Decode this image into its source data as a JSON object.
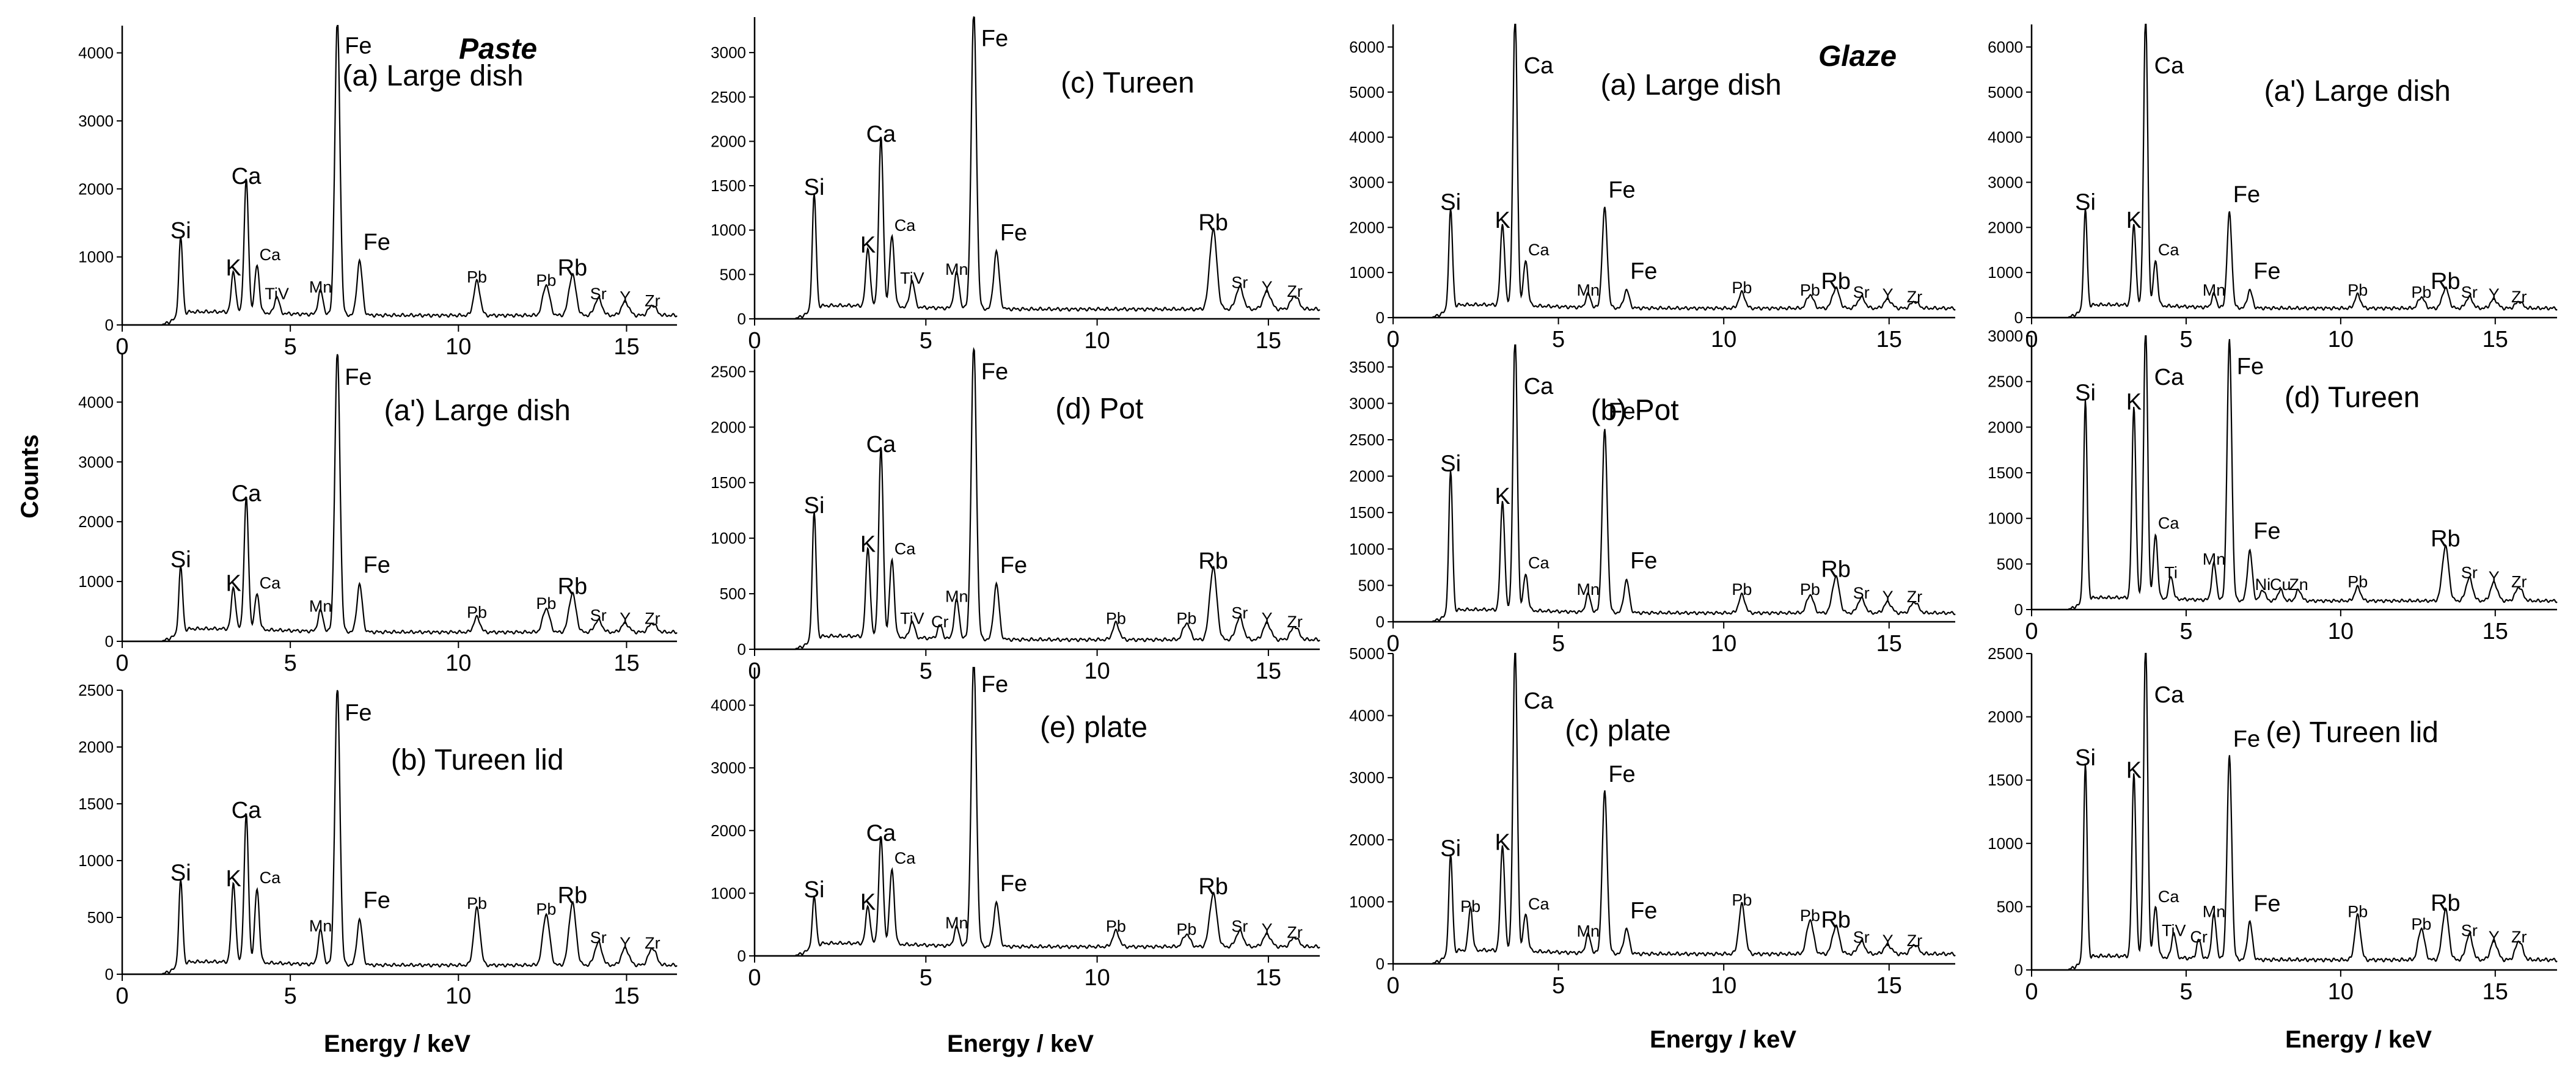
{
  "figure": {
    "ylabel": "Counts",
    "xlabel": "Energy / keV",
    "groups": [
      "Paste",
      "Glaze"
    ]
  },
  "chart_data": [
    {
      "type": "line",
      "title": "(a) Large dish",
      "group": "Paste",
      "xlim": [
        0,
        16.5
      ],
      "ylim": [
        0,
        4400
      ],
      "xticks": [
        "0",
        "5",
        "10",
        "15"
      ],
      "yticks": [
        "0",
        "1000",
        "2000",
        "3000",
        "4000"
      ],
      "peaks": [
        {
          "label": "Si",
          "x": 1.74,
          "y": 1150
        },
        {
          "label": "K",
          "x": 3.31,
          "y": 600
        },
        {
          "label": "Ca",
          "x": 3.69,
          "y": 1950
        },
        {
          "label": "Ca",
          "x": 4.01,
          "y": 700
        },
        {
          "label": "TiV",
          "x": 4.6,
          "y": 250
        },
        {
          "label": "Mn",
          "x": 5.9,
          "y": 350
        },
        {
          "label": "Fe",
          "x": 6.4,
          "y": 4350
        },
        {
          "label": "Fe",
          "x": 7.06,
          "y": 800
        },
        {
          "label": "Pb",
          "x": 10.55,
          "y": 500
        },
        {
          "label": "Pb",
          "x": 12.61,
          "y": 450
        },
        {
          "label": "Rb",
          "x": 13.39,
          "y": 600
        },
        {
          "label": "Sr",
          "x": 14.16,
          "y": 250
        },
        {
          "label": "Y",
          "x": 14.96,
          "y": 200
        },
        {
          "label": "Zr",
          "x": 15.77,
          "y": 150
        }
      ]
    },
    {
      "type": "line",
      "title": "(c) Tureen",
      "group": "Paste",
      "xlim": [
        0,
        16.5
      ],
      "ylim": [
        0,
        3400
      ],
      "xticks": [
        "0",
        "5",
        "10",
        "15"
      ],
      "yticks": [
        "0",
        "500",
        "1000",
        "1500",
        "2000",
        "2500",
        "3000"
      ],
      "peaks": [
        {
          "label": "Si",
          "x": 1.74,
          "y": 1300
        },
        {
          "label": "K",
          "x": 3.31,
          "y": 650
        },
        {
          "label": "Ca",
          "x": 3.69,
          "y": 1900
        },
        {
          "label": "Ca",
          "x": 4.01,
          "y": 800
        },
        {
          "label": "TiV",
          "x": 4.6,
          "y": 300
        },
        {
          "label": "Mn",
          "x": 5.9,
          "y": 400
        },
        {
          "label": "Fe",
          "x": 6.4,
          "y": 3350
        },
        {
          "label": "Fe",
          "x": 7.06,
          "y": 650
        },
        {
          "label": "Rb",
          "x": 13.39,
          "y": 900
        },
        {
          "label": "Sr",
          "x": 14.16,
          "y": 250
        },
        {
          "label": "Y",
          "x": 14.96,
          "y": 200
        },
        {
          "label": "Zr",
          "x": 15.77,
          "y": 150
        }
      ]
    },
    {
      "type": "line",
      "title": "(a) Large dish",
      "group": "Glaze",
      "xlim": [
        0,
        17
      ],
      "ylim": [
        0,
        6500
      ],
      "xticks": [
        "0",
        "5",
        "10",
        "15"
      ],
      "yticks": [
        "0",
        "1000",
        "2000",
        "3000",
        "4000",
        "5000",
        "6000"
      ],
      "peaks": [
        {
          "label": "Si",
          "x": 1.74,
          "y": 2200
        },
        {
          "label": "K",
          "x": 3.31,
          "y": 1800
        },
        {
          "label": "Ca",
          "x": 3.69,
          "y": 6500
        },
        {
          "label": "Ca",
          "x": 4.01,
          "y": 1000
        },
        {
          "label": "Mn",
          "x": 5.9,
          "y": 300
        },
        {
          "label": "Fe",
          "x": 6.4,
          "y": 2200
        },
        {
          "label": "Fe",
          "x": 7.06,
          "y": 400
        },
        {
          "label": "Pb",
          "x": 10.55,
          "y": 350
        },
        {
          "label": "Pb",
          "x": 12.61,
          "y": 300
        },
        {
          "label": "Rb",
          "x": 13.39,
          "y": 450
        },
        {
          "label": "Sr",
          "x": 14.16,
          "y": 250
        },
        {
          "label": "Y",
          "x": 14.96,
          "y": 200
        },
        {
          "label": "Zr",
          "x": 15.77,
          "y": 150
        }
      ]
    },
    {
      "type": "line",
      "title": "(a') Large dish",
      "group": "Glaze",
      "xlim": [
        0,
        17
      ],
      "ylim": [
        0,
        6500
      ],
      "xticks": [
        "0",
        "5",
        "10",
        "15"
      ],
      "yticks": [
        "0",
        "1000",
        "2000",
        "3000",
        "4000",
        "5000",
        "6000"
      ],
      "peaks": [
        {
          "label": "Si",
          "x": 1.74,
          "y": 2200
        },
        {
          "label": "K",
          "x": 3.31,
          "y": 1800
        },
        {
          "label": "Ca",
          "x": 3.69,
          "y": 6500
        },
        {
          "label": "Ca",
          "x": 4.01,
          "y": 1000
        },
        {
          "label": "Mn",
          "x": 5.9,
          "y": 300
        },
        {
          "label": "Fe",
          "x": 6.4,
          "y": 2100
        },
        {
          "label": "Fe",
          "x": 7.06,
          "y": 400
        },
        {
          "label": "Pb",
          "x": 10.55,
          "y": 300
        },
        {
          "label": "Pb",
          "x": 12.61,
          "y": 250
        },
        {
          "label": "Rb",
          "x": 13.39,
          "y": 450
        },
        {
          "label": "Sr",
          "x": 14.16,
          "y": 250
        },
        {
          "label": "Y",
          "x": 14.96,
          "y": 200
        },
        {
          "label": "Zr",
          "x": 15.77,
          "y": 150
        }
      ]
    },
    {
      "type": "line",
      "title": "(a') Large dish",
      "group": "Paste",
      "xlim": [
        0,
        16.5
      ],
      "ylim": [
        0,
        4800
      ],
      "xticks": [
        "0",
        "5",
        "10",
        "15"
      ],
      "yticks": [
        "0",
        "1000",
        "2000",
        "3000",
        "4000"
      ],
      "peaks": [
        {
          "label": "Si",
          "x": 1.74,
          "y": 1100
        },
        {
          "label": "K",
          "x": 3.31,
          "y": 700
        },
        {
          "label": "Ca",
          "x": 3.69,
          "y": 2200
        },
        {
          "label": "Ca",
          "x": 4.01,
          "y": 600
        },
        {
          "label": "Mn",
          "x": 5.9,
          "y": 350
        },
        {
          "label": "Fe",
          "x": 6.4,
          "y": 4700
        },
        {
          "label": "Fe",
          "x": 7.06,
          "y": 800
        },
        {
          "label": "Pb",
          "x": 10.55,
          "y": 250
        },
        {
          "label": "Pb",
          "x": 12.61,
          "y": 400
        },
        {
          "label": "Rb",
          "x": 13.39,
          "y": 650
        },
        {
          "label": "Sr",
          "x": 14.16,
          "y": 200
        },
        {
          "label": "Y",
          "x": 14.96,
          "y": 150
        },
        {
          "label": "Zr",
          "x": 15.77,
          "y": 150
        }
      ]
    },
    {
      "type": "line",
      "title": "(d) Pot",
      "group": "Paste",
      "xlim": [
        0,
        16.5
      ],
      "ylim": [
        0,
        2700
      ],
      "xticks": [
        "0",
        "5",
        "10",
        "15"
      ],
      "yticks": [
        "0",
        "500",
        "1000",
        "1500",
        "2000",
        "2500"
      ],
      "peaks": [
        {
          "label": "Si",
          "x": 1.74,
          "y": 1150
        },
        {
          "label": "K",
          "x": 3.31,
          "y": 800
        },
        {
          "label": "Ca",
          "x": 3.69,
          "y": 1700
        },
        {
          "label": "Ca",
          "x": 4.01,
          "y": 700
        },
        {
          "label": "TiV",
          "x": 4.6,
          "y": 150
        },
        {
          "label": "Cr",
          "x": 5.41,
          "y": 120
        },
        {
          "label": "Mn",
          "x": 5.9,
          "y": 350
        },
        {
          "label": "Fe",
          "x": 6.4,
          "y": 2650
        },
        {
          "label": "Fe",
          "x": 7.06,
          "y": 500
        },
        {
          "label": "Pb",
          "x": 10.55,
          "y": 150
        },
        {
          "label": "Pb",
          "x": 12.61,
          "y": 150
        },
        {
          "label": "Rb",
          "x": 13.39,
          "y": 650
        },
        {
          "label": "Sr",
          "x": 14.16,
          "y": 200
        },
        {
          "label": "Y",
          "x": 14.96,
          "y": 150
        },
        {
          "label": "Zr",
          "x": 15.77,
          "y": 120
        }
      ]
    },
    {
      "type": "line",
      "title": "(b) Pot",
      "group": "Glaze",
      "xlim": [
        0,
        17
      ],
      "ylim": [
        0,
        3800
      ],
      "xticks": [
        "0",
        "5",
        "10",
        "15"
      ],
      "yticks": [
        "0",
        "500",
        "1000",
        "1500",
        "2000",
        "2500",
        "3000",
        "3500"
      ],
      "peaks": [
        {
          "label": "Si",
          "x": 1.74,
          "y": 1950
        },
        {
          "label": "K",
          "x": 3.31,
          "y": 1500
        },
        {
          "label": "Ca",
          "x": 3.69,
          "y": 3800
        },
        {
          "label": "Ca",
          "x": 4.01,
          "y": 500
        },
        {
          "label": "Mn",
          "x": 5.9,
          "y": 250
        },
        {
          "label": "Fe",
          "x": 6.4,
          "y": 2500
        },
        {
          "label": "Fe",
          "x": 7.06,
          "y": 450
        },
        {
          "label": "Pb",
          "x": 10.55,
          "y": 250
        },
        {
          "label": "Pb",
          "x": 12.61,
          "y": 250
        },
        {
          "label": "Rb",
          "x": 13.39,
          "y": 500
        },
        {
          "label": "Sr",
          "x": 14.16,
          "y": 200
        },
        {
          "label": "Y",
          "x": 14.96,
          "y": 150
        },
        {
          "label": "Zr",
          "x": 15.77,
          "y": 150
        }
      ]
    },
    {
      "type": "line",
      "title": "(d) Tureen",
      "group": "Glaze",
      "xlim": [
        0,
        17
      ],
      "ylim": [
        0,
        3000
      ],
      "xticks": [
        "0",
        "5",
        "10",
        "15"
      ],
      "yticks": [
        "0",
        "500",
        "1000",
        "1500",
        "2000",
        "2500",
        "3000"
      ],
      "peaks": [
        {
          "label": "Si",
          "x": 1.74,
          "y": 2200
        },
        {
          "label": "K",
          "x": 3.31,
          "y": 2100
        },
        {
          "label": "Ca",
          "x": 3.69,
          "y": 3000
        },
        {
          "label": "Ca",
          "x": 4.01,
          "y": 700
        },
        {
          "label": "Ti",
          "x": 4.51,
          "y": 250
        },
        {
          "label": "Mn",
          "x": 5.9,
          "y": 400
        },
        {
          "label": "Fe",
          "x": 6.4,
          "y": 2850
        },
        {
          "label": "Fe",
          "x": 7.06,
          "y": 550
        },
        {
          "label": "Ni",
          "x": 7.48,
          "y": 120
        },
        {
          "label": "Cu",
          "x": 8.05,
          "y": 120
        },
        {
          "label": "Zn",
          "x": 8.64,
          "y": 120
        },
        {
          "label": "Pb",
          "x": 10.55,
          "y": 150
        },
        {
          "label": "Rb",
          "x": 13.39,
          "y": 600
        },
        {
          "label": "Sr",
          "x": 14.16,
          "y": 250
        },
        {
          "label": "Y",
          "x": 14.96,
          "y": 200
        },
        {
          "label": "Zr",
          "x": 15.77,
          "y": 150
        }
      ]
    },
    {
      "type": "line",
      "title": "(b) Tureen lid",
      "group": "Paste",
      "xlim": [
        0,
        16.5
      ],
      "ylim": [
        0,
        2500
      ],
      "xticks": [
        "0",
        "5",
        "10",
        "15"
      ],
      "yticks": [
        "0",
        "500",
        "1000",
        "1500",
        "2000",
        "2500"
      ],
      "peaks": [
        {
          "label": "Si",
          "x": 1.74,
          "y": 750
        },
        {
          "label": "K",
          "x": 3.31,
          "y": 700
        },
        {
          "label": "Ca",
          "x": 3.69,
          "y": 1300
        },
        {
          "label": "Ca",
          "x": 4.01,
          "y": 650
        },
        {
          "label": "Mn",
          "x": 5.9,
          "y": 300
        },
        {
          "label": "Fe",
          "x": 6.4,
          "y": 2450
        },
        {
          "label": "Fe",
          "x": 7.06,
          "y": 400
        },
        {
          "label": "Pb",
          "x": 10.55,
          "y": 500
        },
        {
          "label": "Pb",
          "x": 12.61,
          "y": 450
        },
        {
          "label": "Rb",
          "x": 13.39,
          "y": 550
        },
        {
          "label": "Sr",
          "x": 14.16,
          "y": 200
        },
        {
          "label": "Y",
          "x": 14.96,
          "y": 150
        },
        {
          "label": "Zr",
          "x": 15.77,
          "y": 150
        }
      ]
    },
    {
      "type": "line",
      "title": "(e) plate",
      "group": "Paste",
      "xlim": [
        0,
        16.5
      ],
      "ylim": [
        0,
        4600
      ],
      "xticks": [
        "0",
        "5",
        "10",
        "15"
      ],
      "yticks": [
        "0",
        "1000",
        "2000",
        "3000",
        "4000"
      ],
      "peaks": [
        {
          "label": "Si",
          "x": 1.74,
          "y": 800
        },
        {
          "label": "K",
          "x": 3.31,
          "y": 600
        },
        {
          "label": "Ca",
          "x": 3.69,
          "y": 1700
        },
        {
          "label": "Ca",
          "x": 4.01,
          "y": 1200
        },
        {
          "label": "Mn",
          "x": 5.9,
          "y": 300
        },
        {
          "label": "Fe",
          "x": 6.4,
          "y": 4600
        },
        {
          "label": "Fe",
          "x": 7.06,
          "y": 700
        },
        {
          "label": "Pb",
          "x": 10.55,
          "y": 250
        },
        {
          "label": "Pb",
          "x": 12.61,
          "y": 200
        },
        {
          "label": "Rb",
          "x": 13.39,
          "y": 850
        },
        {
          "label": "Sr",
          "x": 14.16,
          "y": 250
        },
        {
          "label": "Y",
          "x": 14.96,
          "y": 200
        },
        {
          "label": "Zr",
          "x": 15.77,
          "y": 150
        }
      ]
    },
    {
      "type": "line",
      "title": "(c) plate",
      "group": "Glaze",
      "xlim": [
        0,
        17
      ],
      "ylim": [
        0,
        5000
      ],
      "xticks": [
        "0",
        "5",
        "10",
        "15"
      ],
      "yticks": [
        "0",
        "1000",
        "2000",
        "3000",
        "4000",
        "5000"
      ],
      "peaks": [
        {
          "label": "Si",
          "x": 1.74,
          "y": 1600
        },
        {
          "label": "Pb",
          "x": 2.34,
          "y": 700
        },
        {
          "label": "K",
          "x": 3.31,
          "y": 1700
        },
        {
          "label": "Ca",
          "x": 3.69,
          "y": 4900
        },
        {
          "label": "Ca",
          "x": 4.01,
          "y": 600
        },
        {
          "label": "Mn",
          "x": 5.9,
          "y": 300
        },
        {
          "label": "Fe",
          "x": 6.4,
          "y": 2600
        },
        {
          "label": "Fe",
          "x": 7.06,
          "y": 400
        },
        {
          "label": "Pb",
          "x": 10.55,
          "y": 800
        },
        {
          "label": "Pb",
          "x": 12.61,
          "y": 550
        },
        {
          "label": "Rb",
          "x": 13.39,
          "y": 450
        },
        {
          "label": "Sr",
          "x": 14.16,
          "y": 200
        },
        {
          "label": "Y",
          "x": 14.96,
          "y": 150
        },
        {
          "label": "Zr",
          "x": 15.77,
          "y": 150
        }
      ]
    },
    {
      "type": "line",
      "title": "(e) Tureen lid",
      "group": "Glaze",
      "xlim": [
        0,
        17
      ],
      "ylim": [
        0,
        2500
      ],
      "xticks": [
        "0",
        "5",
        "10",
        "15"
      ],
      "yticks": [
        "0",
        "500",
        "1000",
        "1500",
        "2000",
        "2500"
      ],
      "peaks": [
        {
          "label": "Si",
          "x": 1.74,
          "y": 1550
        },
        {
          "label": "K",
          "x": 3.31,
          "y": 1450
        },
        {
          "label": "Ca",
          "x": 3.69,
          "y": 2500
        },
        {
          "label": "Ca",
          "x": 4.01,
          "y": 400
        },
        {
          "label": "TiV",
          "x": 4.6,
          "y": 200
        },
        {
          "label": "Cr",
          "x": 5.41,
          "y": 150
        },
        {
          "label": "Mn",
          "x": 5.9,
          "y": 350
        },
        {
          "label": "Fe",
          "x": 6.4,
          "y": 1600
        },
        {
          "label": "Fe",
          "x": 7.06,
          "y": 300
        },
        {
          "label": "Pb",
          "x": 10.55,
          "y": 350
        },
        {
          "label": "Pb",
          "x": 12.61,
          "y": 250
        },
        {
          "label": "Rb",
          "x": 13.39,
          "y": 400
        },
        {
          "label": "Sr",
          "x": 14.16,
          "y": 200
        },
        {
          "label": "Y",
          "x": 14.96,
          "y": 150
        },
        {
          "label": "Zr",
          "x": 15.77,
          "y": 150
        }
      ]
    }
  ]
}
